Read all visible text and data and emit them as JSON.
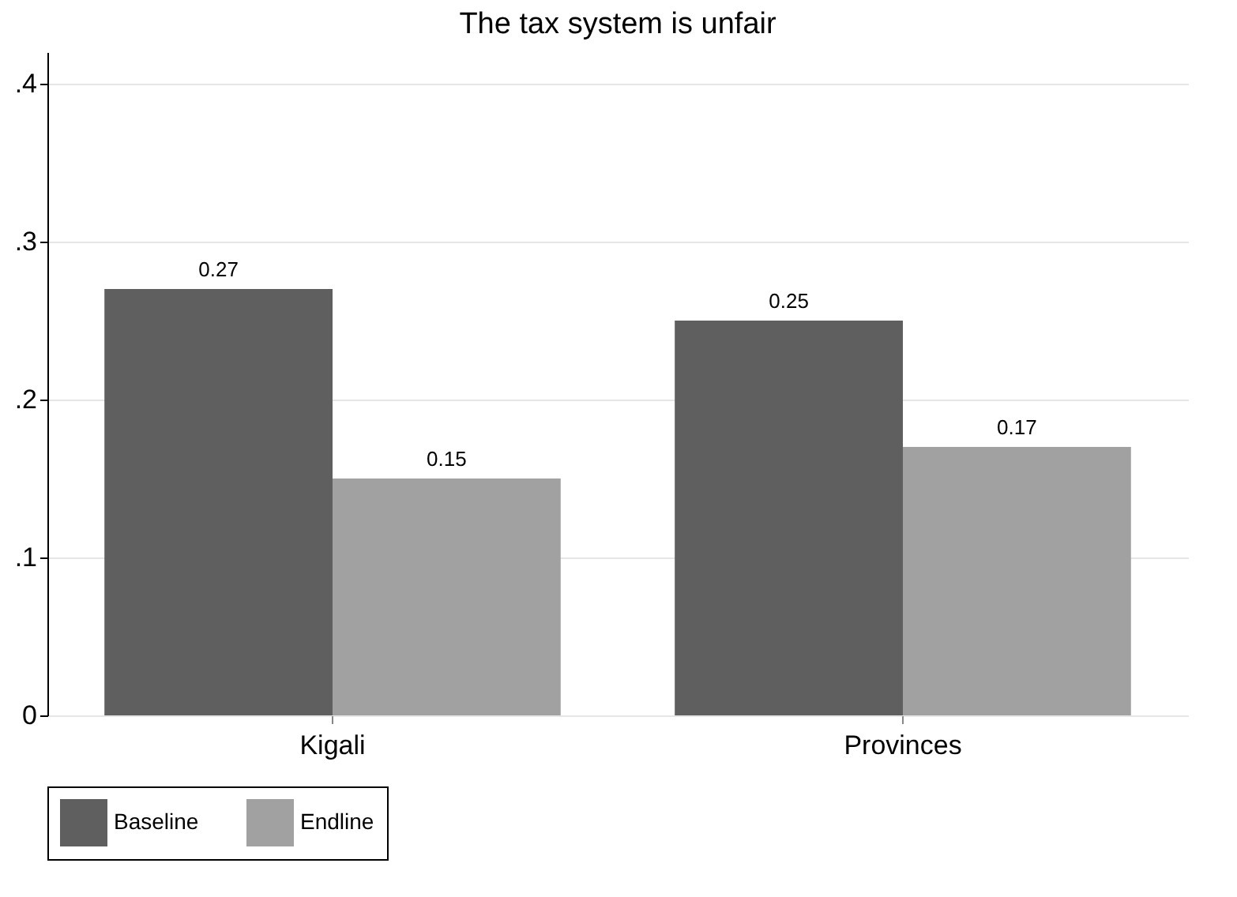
{
  "chart_data": {
    "type": "bar",
    "title": "The tax system is unfair",
    "categories": [
      "Kigali",
      "Provinces"
    ],
    "series": [
      {
        "name": "Baseline",
        "color": "#5f5f5f",
        "values": [
          0.27,
          0.25
        ]
      },
      {
        "name": "Endline",
        "color": "#a1a1a1",
        "values": [
          0.15,
          0.17
        ]
      }
    ],
    "ylim": [
      0,
      0.42
    ],
    "yticks": [
      {
        "value": 0,
        "label": "0"
      },
      {
        "value": 0.1,
        "label": ".1"
      },
      {
        "value": 0.2,
        "label": ".2"
      },
      {
        "value": 0.3,
        "label": ".3"
      },
      {
        "value": 0.4,
        "label": ".4"
      }
    ],
    "grid": "y",
    "legend": "bottom",
    "data_labels": true
  }
}
